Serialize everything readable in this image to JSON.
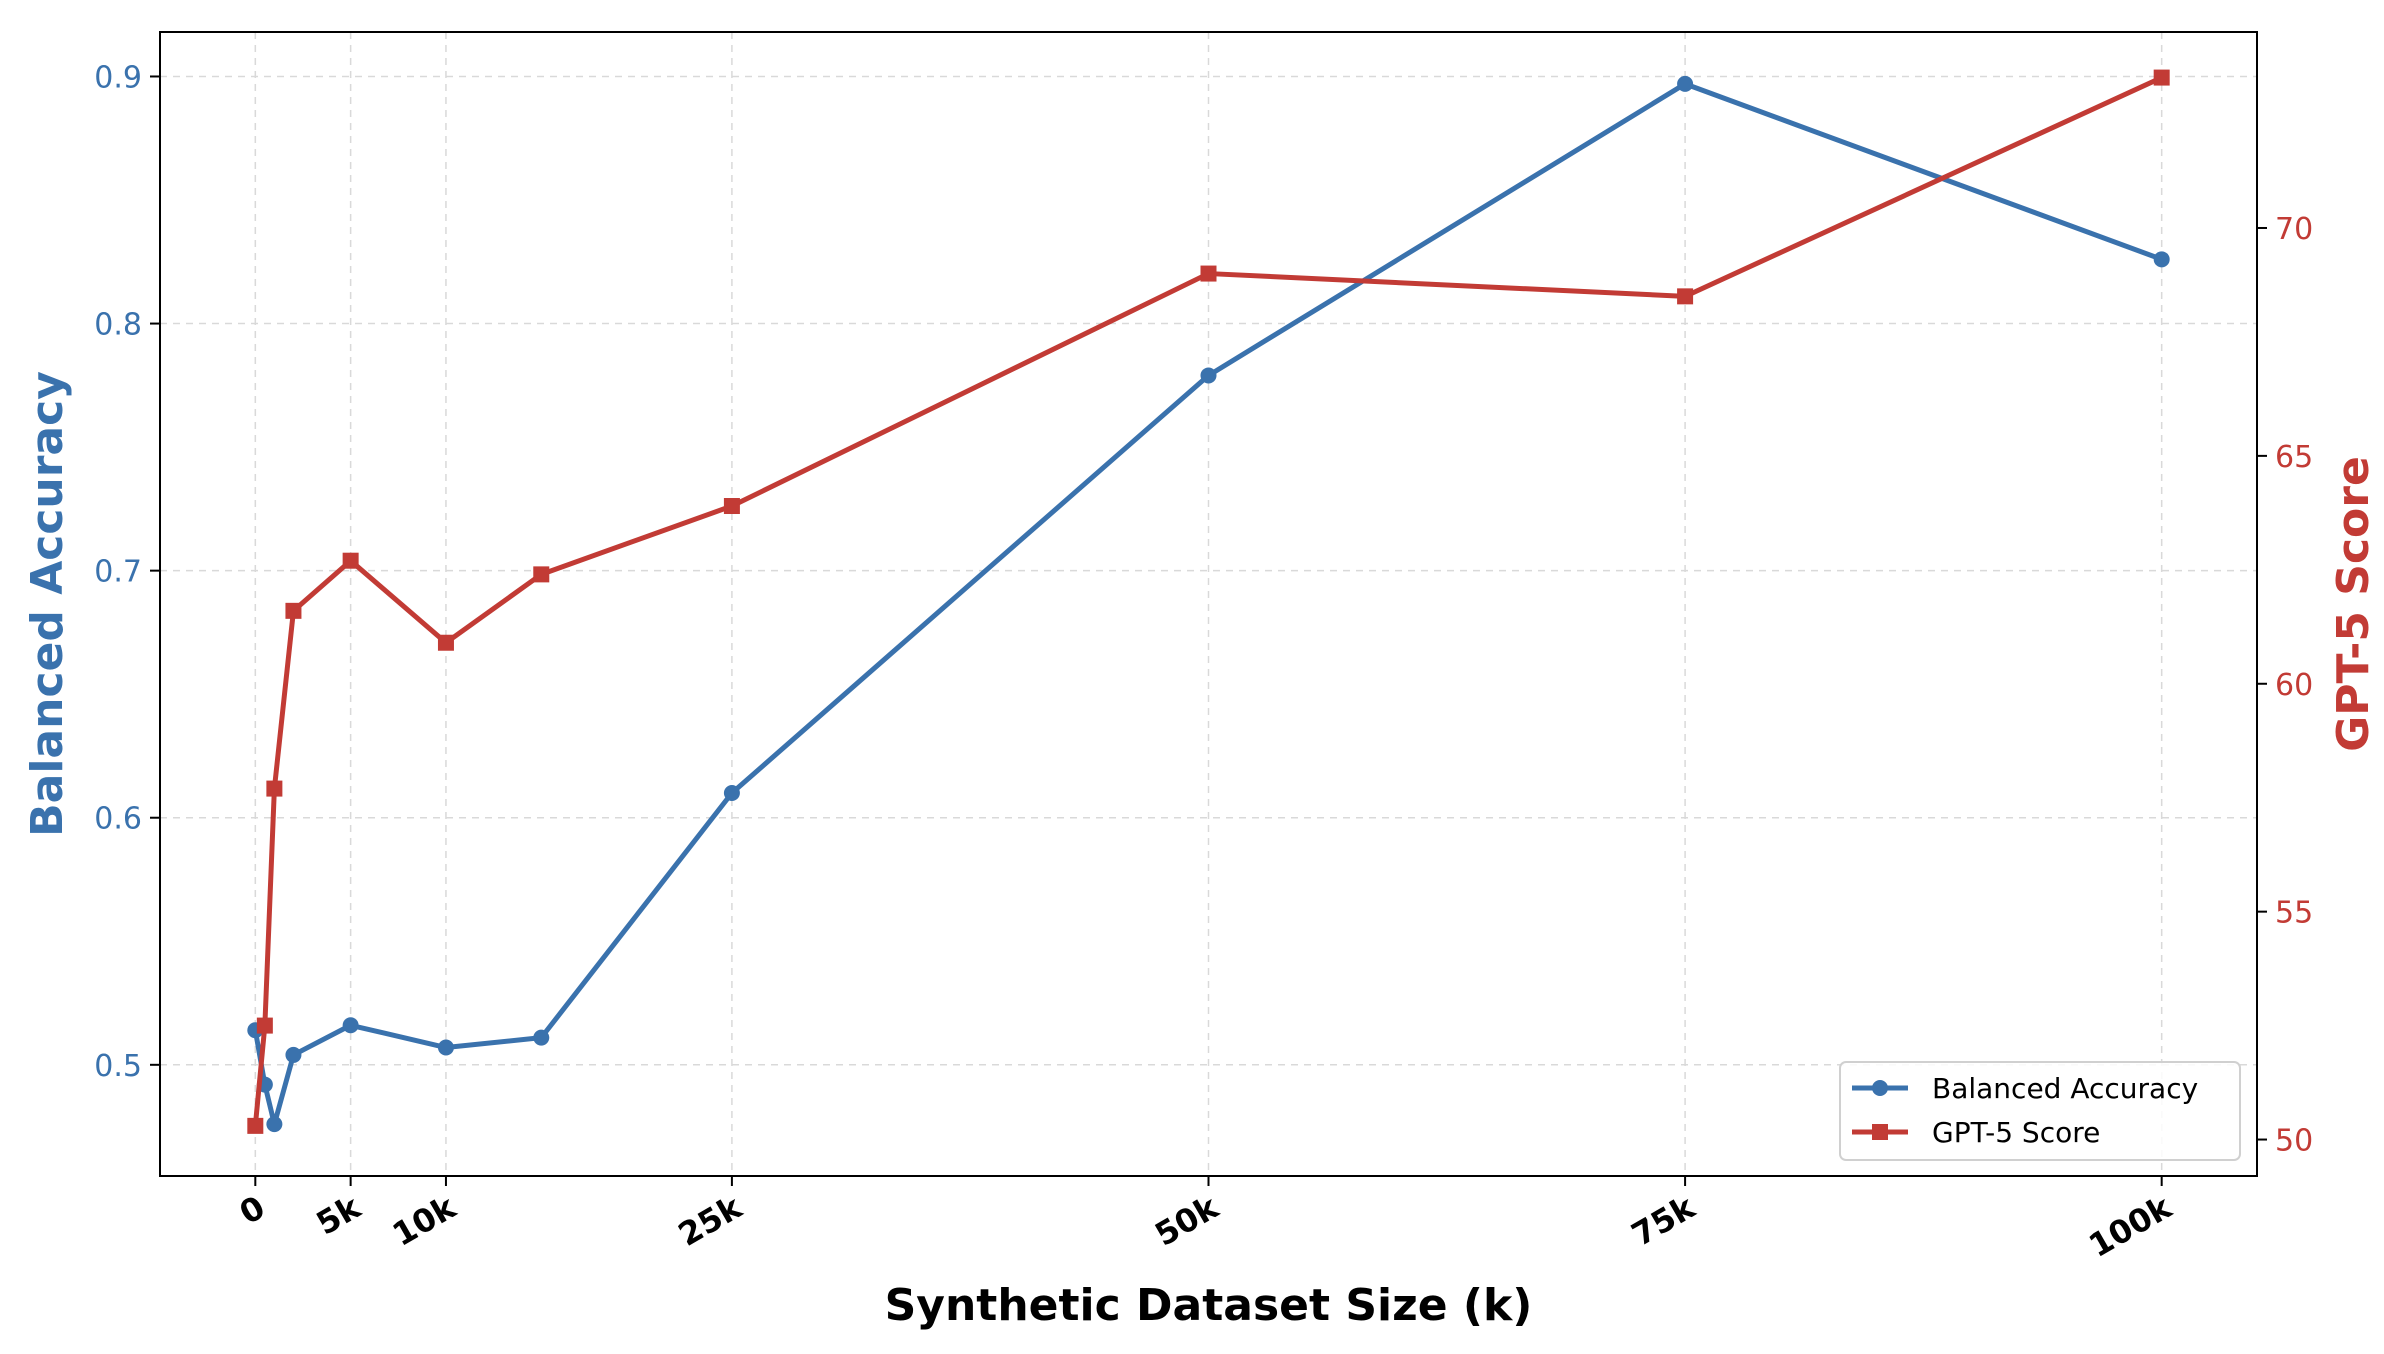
{
  "chart_data": {
    "type": "line",
    "xlabel": "Synthetic Dataset Size (k)",
    "ylabel_left": "Balanced Accuracy",
    "ylabel_right": "GPT-5 Score",
    "x": [
      0,
      0.5,
      1,
      2,
      5,
      10,
      15,
      25,
      50,
      75,
      100
    ],
    "x_ticks": [
      {
        "value": 0,
        "label": "0"
      },
      {
        "value": 5,
        "label": "5k"
      },
      {
        "value": 10,
        "label": "10k"
      },
      {
        "value": 25,
        "label": "25k"
      },
      {
        "value": 50,
        "label": "50k"
      },
      {
        "value": 75,
        "label": "75k"
      },
      {
        "value": 100,
        "label": "100k"
      }
    ],
    "xlim": [
      -5,
      105
    ],
    "left_axis": {
      "ylim": [
        0.455,
        0.918
      ],
      "ticks": [
        {
          "value": 0.5,
          "label": "0.5"
        },
        {
          "value": 0.6,
          "label": "0.6"
        },
        {
          "value": 0.7,
          "label": "0.7"
        },
        {
          "value": 0.8,
          "label": "0.8"
        },
        {
          "value": 0.9,
          "label": "0.9"
        }
      ]
    },
    "right_axis": {
      "ylim": [
        49.2,
        74.3
      ],
      "ticks": [
        {
          "value": 50,
          "label": "50"
        },
        {
          "value": 55,
          "label": "55"
        },
        {
          "value": 60,
          "label": "60"
        },
        {
          "value": 65,
          "label": "65"
        },
        {
          "value": 70,
          "label": "70"
        }
      ]
    },
    "series": [
      {
        "name": "Balanced Accuracy",
        "axis": "left",
        "marker": "circle",
        "color": "#3a72ad",
        "values": [
          0.514,
          0.492,
          0.476,
          0.504,
          0.516,
          0.507,
          0.511,
          0.61,
          0.779,
          0.897,
          0.826
        ]
      },
      {
        "name": "GPT-5 Score",
        "axis": "right",
        "marker": "square",
        "color": "#c23b35",
        "values": [
          50.3,
          52.5,
          57.7,
          61.6,
          62.7,
          60.9,
          62.4,
          63.9,
          69.0,
          68.5,
          73.3
        ]
      }
    ],
    "grid": true,
    "legend_position": "lower-right"
  }
}
